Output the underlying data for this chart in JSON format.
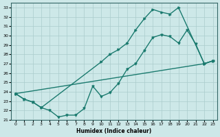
{
  "xlabel": "Humidex (Indice chaleur)",
  "bg_color": "#cde8e8",
  "line_color": "#1a7a6e",
  "grid_color": "#aacccc",
  "xlim": [
    -0.5,
    23.5
  ],
  "ylim": [
    21,
    33.5
  ],
  "yticks": [
    21,
    22,
    23,
    24,
    25,
    26,
    27,
    28,
    29,
    30,
    31,
    32,
    33
  ],
  "xticks": [
    0,
    1,
    2,
    3,
    4,
    5,
    6,
    7,
    8,
    9,
    10,
    11,
    12,
    13,
    14,
    15,
    16,
    17,
    18,
    19,
    20,
    21,
    22,
    23
  ],
  "line1_x": [
    0,
    1,
    2,
    3,
    10,
    11,
    12,
    13,
    14,
    15,
    16,
    17,
    18,
    19,
    22,
    23
  ],
  "line1_y": [
    23.8,
    23.2,
    22.9,
    22.3,
    27.2,
    28.0,
    28.5,
    29.2,
    30.6,
    31.8,
    32.8,
    32.5,
    32.3,
    33.0,
    27.0,
    27.3
  ],
  "line2_x": [
    0,
    1,
    2,
    3,
    4,
    5,
    6,
    7,
    8,
    9,
    10,
    11,
    12,
    13,
    14,
    15,
    16,
    17,
    18,
    19,
    20,
    21,
    22,
    23
  ],
  "line2_y": [
    23.8,
    23.2,
    22.9,
    22.3,
    22.0,
    21.3,
    21.5,
    21.5,
    22.2,
    24.6,
    23.5,
    23.9,
    24.9,
    26.4,
    27.0,
    28.4,
    29.8,
    30.1,
    29.9,
    29.2,
    30.6,
    29.1,
    27.0,
    27.3
  ],
  "line3_x": [
    0,
    22,
    23
  ],
  "line3_y": [
    23.8,
    27.0,
    27.3
  ]
}
